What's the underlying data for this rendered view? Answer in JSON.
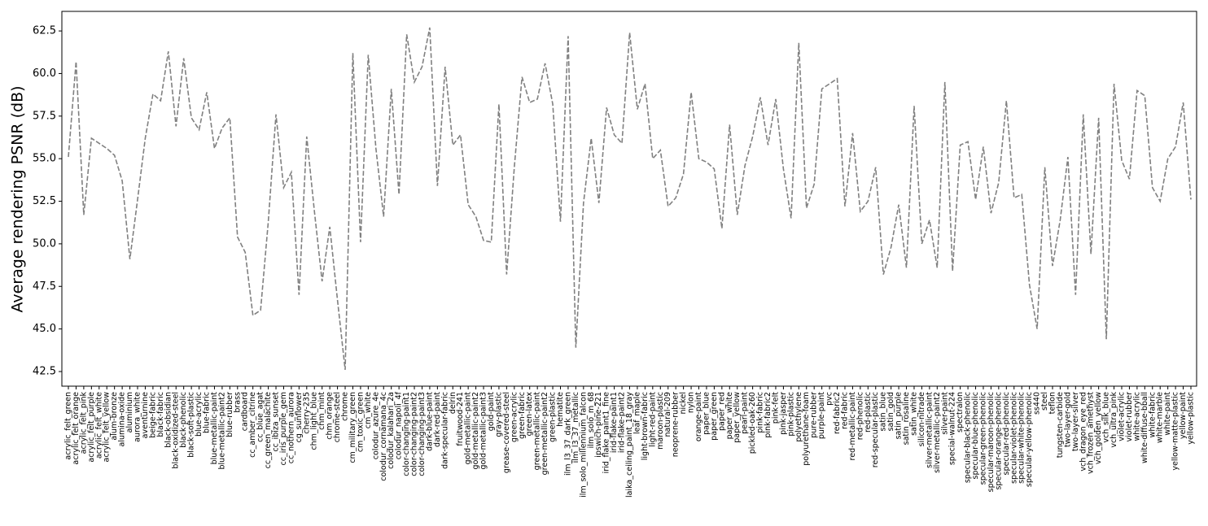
{
  "chart_data": {
    "type": "line",
    "y_label": "Average rendering PSNR (dB)",
    "categories": [
      "acrylic_felt_green",
      "acrylic_felt_orange",
      "acrylic_felt_pink",
      "acrylic_felt_purple",
      "acrylic_felt_white",
      "acrylic_felt_yellow",
      "alum-bronze",
      "alumina-oxide",
      "aluminium",
      "aurora_white",
      "aventurnine",
      "beige-fabric",
      "black-fabric",
      "black-obsidian",
      "black-oxidized-steel",
      "black-phenolic",
      "black-soft-plastic",
      "blue-acrylic",
      "blue-fabric",
      "blue-metallic-paint",
      "blue-metallic-paint2",
      "blue-rubber",
      "brass",
      "cardboard",
      "cc_amber_citrine",
      "cc_blue_agat",
      "cc_green_malachite",
      "cc_ibiza_sunset",
      "cc_iris_purple_gem",
      "cc_nothern_aurora",
      "cg_sunflower",
      "cherry-235",
      "chm_light_blue",
      "chm_mint",
      "chm_orange",
      "chrome-steel",
      "chrome",
      "cm_military_green",
      "cm_toxic_green",
      "cm_white",
      "colodur_azure_4e",
      "colodur_cornamana_4c",
      "colodur_kalahari_2a",
      "colodur_napoli_4f",
      "color-changing-paint1",
      "color-changing-paint2",
      "color-changing-paint3",
      "dark-blue-paint",
      "dark-red-paint",
      "dark-specular-fabric",
      "delrin",
      "fruitwood-241",
      "gold-metallic-paint",
      "gold-metallic-paint2",
      "gold-metallic-paint3",
      "gold-paint",
      "gray-plastic",
      "grease-covered-steel",
      "green-acrylic",
      "green-fabric",
      "green-latex",
      "green-metallic-paint",
      "green-metallic-paint2",
      "green-plastic",
      "hematite",
      "ilm_l3_37_dark_green",
      "ilm_l3_37_metallic",
      "ilm_solo_millennium_falcon",
      "ilm_solo_m_68",
      "ipswich-pine-221",
      "irid_flake_paint1_fine",
      "irid-flake-paint1",
      "irid-flake-paint2",
      "laika_ceiling_paint_18_gray",
      "leaf_maple",
      "light-brown-fabric",
      "light-red-paint",
      "maroon-plastic",
      "natural-209",
      "neoprene-rubber",
      "nickel",
      "nylon",
      "orange-paint",
      "paper_blue",
      "paper_green",
      "paper_red",
      "paper_white",
      "paper_yellow",
      "pearl-paint",
      "pickled-oak-260",
      "pink-fabric",
      "pink-fabric2",
      "pink-felt",
      "pink-jasper",
      "pink-plastic",
      "polyethylene",
      "polyurethane-foam",
      "pure-rubber",
      "purple-paint",
      "pvc",
      "red-fabric2",
      "red-fabric",
      "red-metallic-paint",
      "red-phenolic",
      "red-plastic",
      "red-specular-plastic",
      "satin_blue",
      "satin_gold",
      "satin_purple",
      "satin_rosaline",
      "satin_white",
      "silicon-nitrade",
      "silver-metallic-paint",
      "silver-metallic-paint2",
      "silver-paint",
      "special-walnut-224",
      "spectralon",
      "specular-black-phenolic",
      "specular-blue-phenolic",
      "specular-green-phenolic",
      "specular-maroon-phenolic",
      "specular-orange-phenolic",
      "specular-red-phenolic",
      "specular-violet-phenolic",
      "specular-white-phenolic",
      "specular-yellow-phenolic",
      "ss440",
      "steel",
      "teflon",
      "tungsten-carbide",
      "two-layer-gold",
      "two-layer-silver",
      "vch_dragon_eye_red",
      "vch_frozen_amethyst",
      "vch_golden_yellow",
      "vch_silk_blue",
      "vch_ultra_pink",
      "violet-acrylic",
      "violet-rubber",
      "white-acrylic",
      "white-diffuse-bball",
      "white-fabric",
      "white-marble",
      "white-paint",
      "yellow-matte-plastic",
      "yellow-paint",
      "yellow-plastic"
    ],
    "values": [
      55.1,
      60.7,
      51.7,
      56.2,
      55.9,
      55.6,
      55.2,
      53.7,
      49.1,
      52.6,
      56.2,
      58.8,
      58.4,
      61.3,
      56.9,
      60.9,
      57.4,
      56.7,
      58.9,
      55.6,
      56.8,
      57.4,
      50.4,
      49.5,
      45.8,
      46.1,
      51.3,
      57.6,
      53.3,
      54.2,
      47.0,
      56.3,
      51.9,
      47.8,
      51.0,
      46.7,
      42.6,
      61.2,
      50.1,
      61.1,
      55.6,
      51.6,
      59.1,
      52.9,
      62.3,
      59.5,
      60.4,
      62.7,
      53.4,
      60.4,
      55.8,
      56.4,
      52.3,
      51.6,
      50.2,
      50.1,
      58.2,
      48.2,
      54.5,
      59.8,
      58.3,
      58.5,
      60.6,
      58.2,
      51.3,
      62.2,
      43.9,
      52.4,
      56.2,
      52.4,
      58.0,
      56.4,
      55.9,
      62.4,
      57.9,
      59.4,
      55.0,
      55.5,
      52.2,
      52.7,
      54.1,
      58.9,
      55.0,
      54.8,
      54.4,
      50.9,
      57.0,
      51.7,
      54.6,
      56.3,
      58.6,
      55.8,
      58.5,
      54.4,
      51.5,
      61.8,
      52.1,
      53.5,
      59.1,
      59.4,
      59.7,
      52.2,
      56.5,
      51.9,
      52.5,
      54.5,
      48.2,
      49.8,
      52.3,
      48.6,
      58.1,
      50.0,
      51.4,
      48.6,
      59.5,
      48.4,
      55.8,
      56.0,
      52.6,
      55.7,
      51.8,
      53.6,
      58.4,
      52.7,
      52.9,
      47.6,
      45.0,
      54.5,
      48.7,
      51.4,
      55.1,
      47.0,
      57.6,
      49.4,
      57.4,
      44.4,
      59.4,
      54.9,
      53.8,
      59.0,
      58.7,
      53.3,
      52.5,
      55.0,
      55.7,
      58.3,
      52.6
    ],
    "color": "#808080",
    "line_style": "dashed",
    "ylim": [
      41.64,
      63.65
    ],
    "yticks": [
      42.5,
      {
        "value": 45,
        "label": "45.0"
      },
      47.5,
      {
        "value": 50,
        "label": "50.0"
      },
      52.5,
      {
        "value": 55,
        "label": "55.0"
      },
      57.5,
      {
        "value": 60,
        "label": "60.0"
      },
      62.5
    ]
  }
}
